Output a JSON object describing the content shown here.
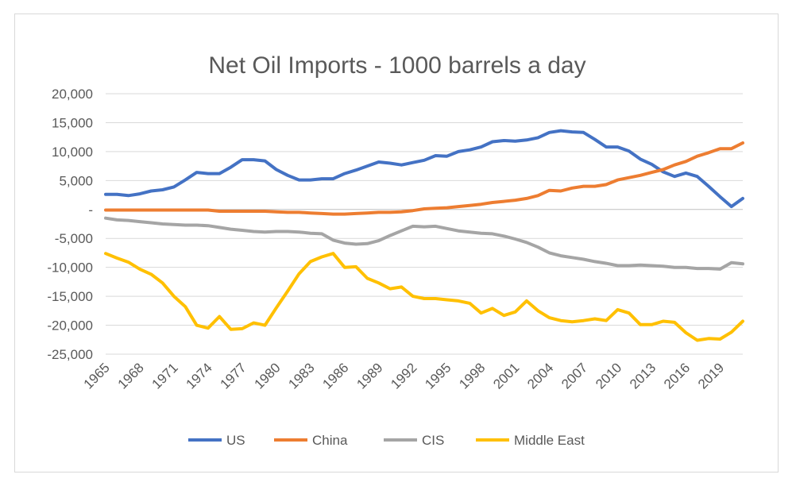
{
  "chart_data": {
    "type": "line",
    "title": "Net Oil Imports - 1000 barrels a day",
    "xlabel": "",
    "ylabel": "",
    "ylim": [
      -25000,
      20000
    ],
    "y_ticks": [
      20000,
      15000,
      10000,
      5000,
      0,
      -5000,
      -10000,
      -15000,
      -20000,
      -25000
    ],
    "y_tick_labels": [
      "20,000",
      "15,000",
      "10,000",
      "5,000",
      "-",
      "-5,000",
      "-10,000",
      "-15,000",
      "-20,000",
      "-25,000"
    ],
    "x_tick_labels": [
      "1965",
      "1968",
      "1971",
      "1974",
      "1977",
      "1980",
      "1983",
      "1986",
      "1989",
      "1992",
      "1995",
      "1998",
      "2001",
      "2004",
      "2007",
      "2010",
      "2013",
      "2016",
      "2019"
    ],
    "x": [
      1965,
      1966,
      1967,
      1968,
      1969,
      1970,
      1971,
      1972,
      1973,
      1974,
      1975,
      1976,
      1977,
      1978,
      1979,
      1980,
      1981,
      1982,
      1983,
      1984,
      1985,
      1986,
      1987,
      1988,
      1989,
      1990,
      1991,
      1992,
      1993,
      1994,
      1995,
      1996,
      1997,
      1998,
      1999,
      2000,
      2001,
      2002,
      2003,
      2004,
      2005,
      2006,
      2007,
      2008,
      2009,
      2010,
      2011,
      2012,
      2013,
      2014,
      2015,
      2016,
      2017,
      2018,
      2019,
      2020,
      2021
    ],
    "grid": "horizontal",
    "legend_position": "bottom",
    "series": [
      {
        "name": "US",
        "color": "#4472c4",
        "values": [
          2600,
          2600,
          2400,
          2700,
          3200,
          3400,
          3900,
          5100,
          6400,
          6200,
          6200,
          7300,
          8600,
          8600,
          8400,
          6900,
          5900,
          5100,
          5100,
          5300,
          5300,
          6200,
          6800,
          7500,
          8200,
          8000,
          7700,
          8100,
          8500,
          9300,
          9200,
          10000,
          10300,
          10800,
          11700,
          11900,
          11800,
          12000,
          12400,
          13300,
          13600,
          13400,
          13300,
          12100,
          10800,
          10800,
          10100,
          8700,
          7800,
          6500,
          5700,
          6300,
          5700,
          4000,
          2200,
          500,
          1900
        ]
      },
      {
        "name": "China",
        "color": "#ed7d31",
        "values": [
          -100,
          -100,
          -100,
          -100,
          -100,
          -100,
          -100,
          -100,
          -100,
          -100,
          -300,
          -300,
          -300,
          -300,
          -300,
          -400,
          -500,
          -500,
          -600,
          -700,
          -800,
          -800,
          -700,
          -600,
          -500,
          -500,
          -400,
          -200,
          100,
          200,
          300,
          500,
          700,
          900,
          1200,
          1400,
          1600,
          1900,
          2400,
          3300,
          3200,
          3700,
          4000,
          4000,
          4300,
          5100,
          5500,
          5900,
          6400,
          6900,
          7700,
          8300,
          9200,
          9800,
          10500,
          10500,
          11500
        ]
      },
      {
        "name": "CIS",
        "color": "#a5a5a5",
        "values": [
          -1500,
          -1800,
          -1900,
          -2100,
          -2300,
          -2500,
          -2600,
          -2700,
          -2700,
          -2800,
          -3100,
          -3400,
          -3600,
          -3800,
          -3900,
          -3800,
          -3800,
          -3900,
          -4100,
          -4200,
          -5300,
          -5800,
          -6000,
          -5900,
          -5400,
          -4500,
          -3700,
          -2900,
          -3000,
          -2900,
          -3300,
          -3700,
          -3900,
          -4100,
          -4200,
          -4600,
          -5100,
          -5700,
          -6500,
          -7500,
          -8000,
          -8300,
          -8600,
          -9000,
          -9300,
          -9700,
          -9700,
          -9600,
          -9700,
          -9800,
          -10000,
          -10000,
          -10200,
          -10200,
          -10300,
          -9200,
          -9400
        ]
      },
      {
        "name": "Middle East",
        "color": "#ffc000",
        "values": [
          -7600,
          -8400,
          -9100,
          -10300,
          -11200,
          -12700,
          -15000,
          -16800,
          -20000,
          -20500,
          -18500,
          -20700,
          -20600,
          -19600,
          -20000,
          -17000,
          -14100,
          -11100,
          -9000,
          -8200,
          -7600,
          -10000,
          -9900,
          -11900,
          -12700,
          -13700,
          -13400,
          -15000,
          -15400,
          -15400,
          -15600,
          -15800,
          -16200,
          -17900,
          -17100,
          -18300,
          -17700,
          -15800,
          -17500,
          -18700,
          -19200,
          -19400,
          -19200,
          -18900,
          -19200,
          -17300,
          -17900,
          -19900,
          -19900,
          -19300,
          -19500,
          -21300,
          -22600,
          -22300,
          -22400,
          -21200,
          -19300
        ]
      }
    ]
  }
}
